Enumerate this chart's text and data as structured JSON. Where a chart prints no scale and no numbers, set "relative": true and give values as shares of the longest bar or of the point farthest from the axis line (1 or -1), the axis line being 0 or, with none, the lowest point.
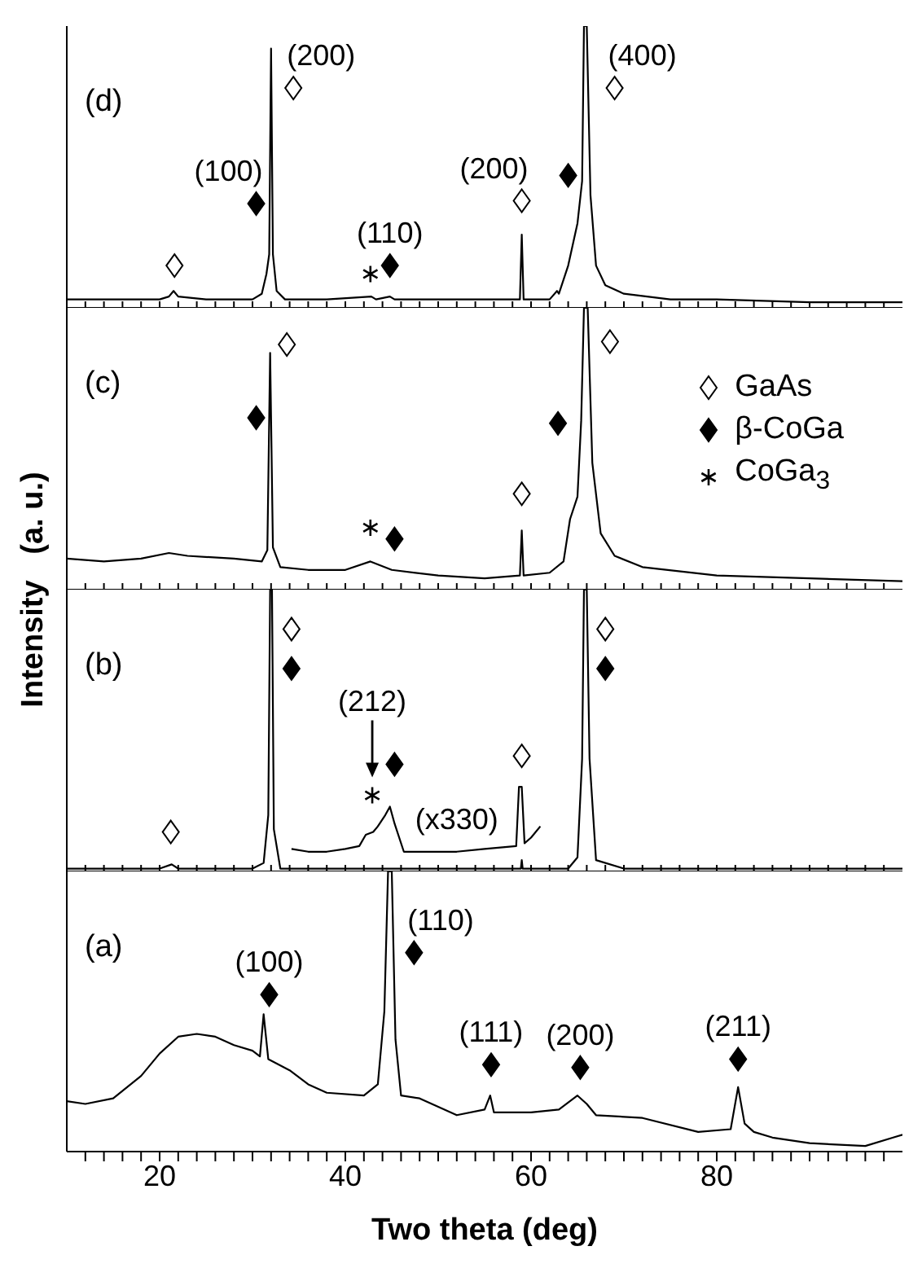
{
  "chart_data": [
    {
      "type": "line",
      "relative": true,
      "xlim": [
        10,
        100
      ],
      "xticks": [
        {
          "value": 12,
          "label": null
        },
        {
          "value": 14,
          "label": null
        },
        {
          "value": 16,
          "label": null
        },
        {
          "value": 18,
          "label": null
        },
        20,
        {
          "value": 22,
          "label": null
        },
        {
          "value": 24,
          "label": null
        },
        {
          "value": 26,
          "label": null
        },
        {
          "value": 28,
          "label": null
        },
        {
          "value": 30,
          "label": null
        },
        {
          "value": 32,
          "label": null
        },
        {
          "value": 34,
          "label": null
        },
        {
          "value": 36,
          "label": null
        },
        {
          "value": 38,
          "label": null
        },
        40,
        {
          "value": 42,
          "label": null
        },
        {
          "value": 44,
          "label": null
        },
        {
          "value": 46,
          "label": null
        },
        {
          "value": 48,
          "label": null
        },
        {
          "value": 50,
          "label": null
        },
        {
          "value": 52,
          "label": null
        },
        {
          "value": 54,
          "label": null
        },
        {
          "value": 56,
          "label": null
        },
        {
          "value": 58,
          "label": null
        },
        60,
        {
          "value": 62,
          "label": null
        },
        {
          "value": 64,
          "label": null
        },
        {
          "value": 66,
          "label": null
        },
        {
          "value": 68,
          "label": null
        },
        {
          "value": 70,
          "label": null
        },
        {
          "value": 72,
          "label": null
        },
        {
          "value": 74,
          "label": null
        },
        {
          "value": 76,
          "label": null
        },
        {
          "value": 78,
          "label": null
        },
        80,
        {
          "value": 82,
          "label": null
        },
        {
          "value": 84,
          "label": null
        },
        {
          "value": 86,
          "label": null
        },
        {
          "value": 88,
          "label": null
        },
        {
          "value": 90,
          "label": null
        },
        {
          "value": 92,
          "label": null
        },
        {
          "value": 94,
          "label": null
        },
        {
          "value": 96,
          "label": null
        },
        {
          "value": 98,
          "label": null
        }
      ],
      "tick_labels": false,
      "legend": false,
      "series": [
        {
          "color": "#000000",
          "marker": "none",
          "x": [
            10,
            15,
            20,
            21,
            21.5,
            22,
            25,
            30,
            31,
            31.5,
            31.8,
            32.0,
            32.2,
            32.6,
            33.5,
            38,
            42.8,
            43.3,
            44.8,
            45.3,
            50,
            55,
            58.8,
            59.0,
            59.2,
            62,
            62.8,
            63.0,
            64,
            65,
            65.5,
            65.7,
            66.0,
            66.4,
            67,
            68,
            70,
            75,
            80,
            90,
            100
          ],
          "values": [
            0.03,
            0.03,
            0.03,
            0.04,
            0.06,
            0.04,
            0.03,
            0.03,
            0.05,
            0.12,
            0.19,
            0.92,
            0.19,
            0.06,
            0.03,
            0.03,
            0.04,
            0.03,
            0.04,
            0.03,
            0.03,
            0.03,
            0.03,
            0.26,
            0.03,
            0.03,
            0.06,
            0.05,
            0.15,
            0.3,
            0.45,
            1,
            1,
            0.4,
            0.15,
            0.08,
            0.05,
            0.03,
            0.03,
            0.02,
            0.02
          ]
        },
        {
          "type": "scatter",
          "color": "#ffffff",
          "marker": "diamond",
          "x": [
            21.6,
            34.4,
            59.0,
            69.0
          ],
          "values": [
            0.15,
            0.78,
            0.38,
            0.78
          ]
        },
        {
          "type": "scatter",
          "color": "#000000",
          "marker": "diamond",
          "x": [
            30.4,
            44.8,
            64.0
          ],
          "values": [
            0.37,
            0.15,
            0.47
          ]
        },
        {
          "type": "scatter",
          "color": "#000000",
          "marker": "cross",
          "x": [
            42.7
          ],
          "values": [
            0.12
          ]
        }
      ],
      "annotations": [
        "(d)",
        {
          "text": "(200)",
          "x": 34.4,
          "y": 0.78
        },
        {
          "text": "(100)",
          "x": 30.4,
          "y": 0.37
        },
        {
          "text": "(110)",
          "x": 44.8,
          "y": 0.15
        },
        {
          "text": "(200)",
          "x": 59.0,
          "y": 0.38
        },
        {
          "text": "(400)",
          "x": 69.0,
          "y": 0.78
        }
      ]
    },
    {
      "type": "line",
      "relative": true,
      "xlim": [
        10,
        100
      ],
      "xticks": [
        {
          "value": 12,
          "label": null
        },
        {
          "value": 14,
          "label": null
        },
        {
          "value": 16,
          "label": null
        },
        {
          "value": 18,
          "label": null
        },
        20,
        {
          "value": 22,
          "label": null
        },
        {
          "value": 24,
          "label": null
        },
        {
          "value": 26,
          "label": null
        },
        {
          "value": 28,
          "label": null
        },
        {
          "value": 30,
          "label": null
        },
        {
          "value": 32,
          "label": null
        },
        {
          "value": 34,
          "label": null
        },
        {
          "value": 36,
          "label": null
        },
        {
          "value": 38,
          "label": null
        },
        40,
        {
          "value": 42,
          "label": null
        },
        {
          "value": 44,
          "label": null
        },
        {
          "value": 46,
          "label": null
        },
        {
          "value": 48,
          "label": null
        },
        {
          "value": 50,
          "label": null
        },
        {
          "value": 52,
          "label": null
        },
        {
          "value": 54,
          "label": null
        },
        {
          "value": 56,
          "label": null
        },
        {
          "value": 58,
          "label": null
        },
        60,
        {
          "value": 62,
          "label": null
        },
        {
          "value": 64,
          "label": null
        },
        {
          "value": 66,
          "label": null
        },
        {
          "value": 68,
          "label": null
        },
        {
          "value": 70,
          "label": null
        },
        {
          "value": 72,
          "label": null
        },
        {
          "value": 74,
          "label": null
        },
        {
          "value": 76,
          "label": null
        },
        {
          "value": 78,
          "label": null
        },
        80,
        {
          "value": 82,
          "label": null
        },
        {
          "value": 84,
          "label": null
        },
        {
          "value": 86,
          "label": null
        },
        {
          "value": 88,
          "label": null
        },
        {
          "value": 90,
          "label": null
        },
        {
          "value": 92,
          "label": null
        },
        {
          "value": 94,
          "label": null
        },
        {
          "value": 96,
          "label": null
        },
        {
          "value": 98,
          "label": null
        }
      ],
      "tick_labels": false,
      "legend": "top right",
      "ylabel": "Intensity   (a. u.)",
      "series": [
        {
          "color": "#000000",
          "marker": "none",
          "x": [
            10,
            14,
            18,
            21,
            23,
            28,
            31,
            31.6,
            31.9,
            32.2,
            33,
            36,
            40,
            42.7,
            45,
            50,
            55,
            58.8,
            59.0,
            59.2,
            62,
            63.5,
            64.2,
            65,
            65.4,
            65.7,
            66.1,
            66.6,
            67.5,
            69,
            72,
            80,
            90,
            100
          ],
          "values": [
            0.11,
            0.1,
            0.11,
            0.13,
            0.12,
            0.11,
            0.1,
            0.14,
            0.84,
            0.15,
            0.08,
            0.07,
            0.07,
            0.1,
            0.07,
            0.05,
            0.04,
            0.05,
            0.21,
            0.05,
            0.06,
            0.1,
            0.25,
            0.33,
            0.6,
            1,
            1,
            0.45,
            0.2,
            0.12,
            0.08,
            0.05,
            0.04,
            0.03
          ]
        },
        {
          "type": "scatter",
          "name": "GaAs",
          "color": "#ffffff",
          "marker": "diamond",
          "x": [
            33.7,
            59.0,
            68.5
          ],
          "values": [
            0.87,
            0.34,
            0.88
          ]
        },
        {
          "type": "scatter",
          "name": "β-CoGa",
          "color": "#000000",
          "marker": "diamond",
          "x": [
            30.4,
            45.3,
            62.9
          ],
          "values": [
            0.61,
            0.18,
            0.59
          ]
        },
        {
          "type": "scatter",
          "name": "CoGa$_{3}$",
          "color": "#000000",
          "marker": "cross",
          "x": [
            42.7
          ],
          "values": [
            0.22
          ]
        }
      ],
      "annotations": [
        "(c)"
      ]
    },
    {
      "type": "line",
      "relative": true,
      "xlim": [
        10,
        100
      ],
      "xticks": [
        {
          "value": 12,
          "label": null
        },
        {
          "value": 14,
          "label": null
        },
        {
          "value": 16,
          "label": null
        },
        {
          "value": 18,
          "label": null
        },
        20,
        {
          "value": 22,
          "label": null
        },
        {
          "value": 24,
          "label": null
        },
        {
          "value": 26,
          "label": null
        },
        {
          "value": 28,
          "label": null
        },
        {
          "value": 30,
          "label": null
        },
        {
          "value": 32,
          "label": null
        },
        {
          "value": 34,
          "label": null
        },
        {
          "value": 36,
          "label": null
        },
        {
          "value": 38,
          "label": null
        },
        40,
        {
          "value": 42,
          "label": null
        },
        {
          "value": 44,
          "label": null
        },
        {
          "value": 46,
          "label": null
        },
        {
          "value": 48,
          "label": null
        },
        {
          "value": 50,
          "label": null
        },
        {
          "value": 52,
          "label": null
        },
        {
          "value": 54,
          "label": null
        },
        {
          "value": 56,
          "label": null
        },
        {
          "value": 58,
          "label": null
        },
        60,
        {
          "value": 62,
          "label": null
        },
        {
          "value": 64,
          "label": null
        },
        {
          "value": 66,
          "label": null
        },
        {
          "value": 68,
          "label": null
        },
        {
          "value": 70,
          "label": null
        },
        {
          "value": 72,
          "label": null
        },
        {
          "value": 74,
          "label": null
        },
        {
          "value": 76,
          "label": null
        },
        {
          "value": 78,
          "label": null
        },
        80,
        {
          "value": 82,
          "label": null
        },
        {
          "value": 84,
          "label": null
        },
        {
          "value": 86,
          "label": null
        },
        {
          "value": 88,
          "label": null
        },
        {
          "value": 90,
          "label": null
        },
        {
          "value": 92,
          "label": null
        },
        {
          "value": 94,
          "label": null
        },
        {
          "value": 96,
          "label": null
        },
        {
          "value": 98,
          "label": null
        }
      ],
      "tick_labels": false,
      "legend": false,
      "series": [
        {
          "color": "#000000",
          "marker": "none",
          "x": [
            10,
            20,
            21.3,
            22,
            30,
            31.2,
            31.7,
            31.9,
            32.1,
            32.3,
            33,
            50,
            58.9,
            59.0,
            59.1,
            64,
            65,
            65.5,
            65.7,
            66.0,
            66.3,
            67,
            70,
            100
          ],
          "values": [
            0.01,
            0.01,
            0.025,
            0.01,
            0.01,
            0.03,
            0.2,
            1,
            1,
            0.15,
            0.01,
            0.01,
            0.01,
            0.04,
            0.01,
            0.01,
            0.05,
            0.4,
            1,
            1,
            0.4,
            0.04,
            0.01,
            0.01
          ]
        },
        {
          "color": "#000000",
          "marker": "none",
          "x": [
            34.2,
            36,
            38,
            40,
            41.5,
            42.2,
            43,
            43.5,
            44.3,
            44.8,
            45.3,
            46.3,
            48,
            52,
            55,
            58.4,
            58.7,
            59.0,
            59.3,
            60,
            61
          ],
          "values": [
            0.08,
            0.07,
            0.07,
            0.08,
            0.09,
            0.13,
            0.14,
            0.16,
            0.2,
            0.23,
            0.17,
            0.07,
            0.07,
            0.07,
            0.08,
            0.09,
            0.3,
            0.3,
            0.1,
            0.12,
            0.16
          ]
        },
        {
          "type": "scatter",
          "color": "#ffffff",
          "marker": "diamond",
          "x": [
            21.2,
            34.2,
            59.0,
            68.0
          ],
          "values": [
            0.14,
            0.86,
            0.41,
            0.86
          ]
        },
        {
          "type": "scatter",
          "color": "#000000",
          "marker": "diamond",
          "x": [
            34.2,
            45.3,
            68.0
          ],
          "values": [
            0.72,
            0.38,
            0.72
          ]
        },
        {
          "type": "scatter",
          "color": "#000000",
          "marker": "cross",
          "x": [
            42.9
          ],
          "values": [
            0.27
          ]
        }
      ],
      "annotations": [
        "(b)",
        {
          "text": "(212)",
          "x": 42.9,
          "y": 0.27
        },
        {
          "text": "(x330)",
          "x": 52,
          "y": 0.07
        }
      ]
    },
    {
      "type": "line",
      "relative": true,
      "xlim": [
        10,
        100
      ],
      "xticks": [
        {
          "value": 12,
          "label": null
        },
        {
          "value": 14,
          "label": null
        },
        {
          "value": 16,
          "label": null
        },
        {
          "value": 18,
          "label": null
        },
        20,
        {
          "value": 22,
          "label": null
        },
        {
          "value": 24,
          "label": null
        },
        {
          "value": 26,
          "label": null
        },
        {
          "value": 28,
          "label": null
        },
        {
          "value": 30,
          "label": null
        },
        {
          "value": 32,
          "label": null
        },
        {
          "value": 34,
          "label": null
        },
        {
          "value": 36,
          "label": null
        },
        {
          "value": 38,
          "label": null
        },
        40,
        {
          "value": 42,
          "label": null
        },
        {
          "value": 44,
          "label": null
        },
        {
          "value": 46,
          "label": null
        },
        {
          "value": 48,
          "label": null
        },
        {
          "value": 50,
          "label": null
        },
        {
          "value": 52,
          "label": null
        },
        {
          "value": 54,
          "label": null
        },
        {
          "value": 56,
          "label": null
        },
        {
          "value": 58,
          "label": null
        },
        60,
        {
          "value": 62,
          "label": null
        },
        {
          "value": 64,
          "label": null
        },
        {
          "value": 66,
          "label": null
        },
        {
          "value": 68,
          "label": null
        },
        {
          "value": 70,
          "label": null
        },
        {
          "value": 72,
          "label": null
        },
        {
          "value": 74,
          "label": null
        },
        {
          "value": 76,
          "label": null
        },
        {
          "value": 78,
          "label": null
        },
        80,
        {
          "value": 82,
          "label": null
        },
        {
          "value": 84,
          "label": null
        },
        {
          "value": 86,
          "label": null
        },
        {
          "value": 88,
          "label": null
        },
        {
          "value": 90,
          "label": null
        },
        {
          "value": 92,
          "label": null
        },
        {
          "value": 94,
          "label": null
        },
        {
          "value": 96,
          "label": null
        },
        {
          "value": 98,
          "label": null
        }
      ],
      "tick_labels": "x",
      "legend": false,
      "xlabel": "Two theta   (deg)",
      "series": [
        {
          "color": "#000000",
          "marker": "none",
          "x": [
            10,
            12,
            15,
            18,
            20,
            22,
            24,
            26,
            28,
            30,
            30.8,
            31.2,
            31.7,
            34,
            36,
            38,
            42,
            43.5,
            44.2,
            44.6,
            45.0,
            45.4,
            46,
            48,
            52,
            55,
            55.6,
            56,
            60,
            63,
            65,
            66,
            67,
            72,
            78,
            81.5,
            82.3,
            83,
            84,
            86,
            90,
            96,
            99,
            100
          ],
          "values": [
            0.18,
            0.17,
            0.19,
            0.27,
            0.35,
            0.41,
            0.42,
            0.41,
            0.38,
            0.36,
            0.34,
            0.49,
            0.33,
            0.29,
            0.24,
            0.21,
            0.2,
            0.24,
            0.5,
            1,
            1,
            0.4,
            0.2,
            0.19,
            0.13,
            0.15,
            0.2,
            0.14,
            0.14,
            0.15,
            0.2,
            0.17,
            0.13,
            0.12,
            0.07,
            0.08,
            0.23,
            0.1,
            0.07,
            0.05,
            0.03,
            0.02,
            0.05,
            0.06
          ]
        },
        {
          "type": "scatter",
          "color": "#000000",
          "marker": "diamond",
          "x": [
            31.8,
            47.4,
            55.7,
            65.3,
            82.3
          ],
          "values": [
            0.56,
            0.71,
            0.31,
            0.3,
            0.33
          ]
        }
      ],
      "annotations": [
        "(a)",
        {
          "text": "(100)",
          "x": 31.8,
          "y": 0.56
        },
        {
          "text": "(110)",
          "x": 47.4,
          "y": 0.71
        },
        {
          "text": "(111)",
          "x": 55.7,
          "y": 0.31
        },
        {
          "text": "(200)",
          "x": 65.3,
          "y": 0.3
        },
        {
          "text": "(211)",
          "x": 82.3,
          "y": 0.33
        }
      ]
    }
  ]
}
